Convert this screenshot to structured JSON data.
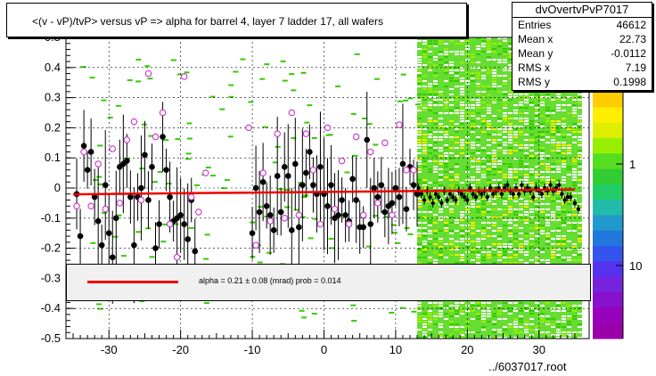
{
  "title": "<(v - vP)/tvP> versus  vP => alpha for barrel 4, layer 7 ladder 17, all wafers",
  "stats": {
    "name": "dvOvertvPvP7017",
    "rows": [
      {
        "label": "Entries",
        "value": "46612"
      },
      {
        "label": "Mean x",
        "value": "22.73"
      },
      {
        "label": "Mean y",
        "value": "-0.0112"
      },
      {
        "label": "RMS x",
        "value": "7.19"
      },
      {
        "label": "RMS y",
        "value": "0.1998"
      }
    ]
  },
  "fit_text": "alpha =     0.21 ±   0.08 (mrad) prob = 0.014",
  "footer": "../6037017.root",
  "colors": {
    "fit_line": "#ee0000",
    "profile_marker": "#000000",
    "open_marker": "#cc33cc",
    "fit_box_bg": "#f0f0f0"
  },
  "chart_data": {
    "type": "scatter",
    "xlim": [
      -36,
      37
    ],
    "ylim": [
      -0.5,
      0.5
    ],
    "x_ticks": [
      "-30",
      "-20",
      "-10",
      "0",
      "10",
      "20",
      "30"
    ],
    "y_ticks": [
      "-0.5",
      "-0.4",
      "-0.3",
      "-0.2",
      "-0.1",
      "0",
      "0.1",
      "0.2",
      "0.3",
      "0.4",
      "0.5"
    ],
    "z_ticks": [
      "1",
      "10"
    ],
    "grid": true,
    "dense_band": {
      "x": [
        13,
        36
      ],
      "y": [
        -0.5,
        0.5
      ]
    },
    "fit_line": {
      "x": [
        -35,
        35
      ],
      "y": [
        -0.021,
        -0.005
      ]
    },
    "series": [
      {
        "marker": "filled-circle",
        "points": [
          [
            -34.5,
            -0.02
          ],
          [
            -34,
            -0.16
          ],
          [
            -33.5,
            0.14
          ],
          [
            -33,
            0.06
          ],
          [
            -32.5,
            0.12
          ],
          [
            -32,
            -0.03
          ],
          [
            -31.5,
            -0.11
          ],
          [
            -31,
            -0.19
          ],
          [
            -30.5,
            0.01
          ],
          [
            -30,
            -0.15
          ],
          [
            -29.5,
            -0.23
          ],
          [
            -29,
            -0.1
          ],
          [
            -28.5,
            0.07
          ],
          [
            -28,
            0.08
          ],
          [
            -27.5,
            0.09
          ],
          [
            -27,
            -0.03
          ],
          [
            -26.5,
            -0.19
          ],
          [
            -26,
            -0.03
          ],
          [
            -25.5,
            0.0
          ],
          [
            -25,
            0.11
          ],
          [
            -24.5,
            -0.04
          ],
          [
            -24,
            0.07
          ],
          [
            -23.5,
            -0.2
          ],
          [
            -23,
            -0.12
          ],
          [
            -22.5,
            0.17
          ],
          [
            -22,
            0.06
          ],
          [
            -21.5,
            -0.03
          ],
          [
            -21,
            -0.11
          ],
          [
            -20.5,
            -0.1
          ],
          [
            -20,
            -0.09
          ],
          [
            -19.5,
            -0.12
          ],
          [
            -19,
            -0.17
          ],
          [
            -18.5,
            -0.04
          ],
          [
            -18,
            -0.21
          ],
          [
            -10,
            -0.15
          ],
          [
            -9.5,
            0.0
          ],
          [
            -9,
            -0.08
          ],
          [
            -8.5,
            0.02
          ],
          [
            -8,
            -0.06
          ],
          [
            -7.5,
            -0.09
          ],
          [
            -7,
            -0.14
          ],
          [
            -6.5,
            0.04
          ],
          [
            -6,
            -0.08
          ],
          [
            -5.5,
            0.07
          ],
          [
            -5,
            0.04
          ],
          [
            -4.5,
            -0.14
          ],
          [
            -4,
            0.08
          ],
          [
            -3.5,
            -0.13
          ],
          [
            -3,
            0.01
          ],
          [
            -2.5,
            0.05
          ],
          [
            -2,
            0.12
          ],
          [
            -1.5,
            0.01
          ],
          [
            -1,
            -0.02
          ],
          [
            -0.5,
            0.07
          ],
          [
            0,
            -0.02
          ],
          [
            0.5,
            -0.06
          ],
          [
            1,
            0.01
          ],
          [
            1.5,
            -0.1
          ],
          [
            2,
            -0.09
          ],
          [
            2.5,
            -0.04
          ],
          [
            3,
            -0.09
          ],
          [
            3.5,
            -0.11
          ],
          [
            4,
            0.03
          ],
          [
            4.5,
            -0.04
          ],
          [
            5,
            -0.13
          ],
          [
            5.5,
            -0.13
          ],
          [
            6,
            0.16
          ],
          [
            6.5,
            -0.12
          ],
          [
            7,
            0.0
          ],
          [
            7.5,
            -0.03
          ],
          [
            8,
            0.01
          ],
          [
            8.5,
            -0.08
          ],
          [
            9,
            -0.06
          ],
          [
            9.5,
            -0.05
          ],
          [
            10,
            0.0
          ],
          [
            10.5,
            -0.03
          ],
          [
            11,
            0.08
          ],
          [
            11.5,
            -0.07
          ],
          [
            12,
            0.07
          ],
          [
            12.5,
            0.01
          ],
          [
            13,
            -0.02
          ]
        ]
      },
      {
        "marker": "open-circle",
        "points": [
          [
            -34.5,
            -0.06
          ],
          [
            -33.5,
            0.12
          ],
          [
            -32.5,
            -0.06
          ],
          [
            -31.5,
            0.08
          ],
          [
            -30.5,
            -0.07
          ],
          [
            -29.5,
            0.13
          ],
          [
            -28.5,
            -0.05
          ],
          [
            -27.5,
            0.16
          ],
          [
            -26.5,
            0.22
          ],
          [
            -25.5,
            -0.04
          ],
          [
            -24.5,
            0.38
          ],
          [
            -23.5,
            0.17
          ],
          [
            -22.5,
            0.25
          ],
          [
            -21.5,
            -0.12
          ],
          [
            -20.5,
            -0.23
          ],
          [
            -19.5,
            0.37
          ],
          [
            -18.5,
            -0.03
          ],
          [
            -17.5,
            -0.08
          ],
          [
            -16.5,
            0.05
          ],
          [
            -10.5,
            0.2
          ],
          [
            -9.5,
            -0.19
          ],
          [
            -8.5,
            0.05
          ],
          [
            -7.5,
            -0.11
          ],
          [
            -6.5,
            0.18
          ],
          [
            -5.5,
            -0.1
          ],
          [
            -4.5,
            0.25
          ],
          [
            -3.5,
            -0.09
          ],
          [
            -2.5,
            0.18
          ],
          [
            -1.5,
            0.06
          ],
          [
            -0.5,
            -0.12
          ],
          [
            0.5,
            0.2
          ],
          [
            1.5,
            -0.07
          ],
          [
            2.5,
            0.09
          ],
          [
            3.5,
            -0.12
          ],
          [
            4.5,
            0.17
          ],
          [
            5.5,
            -0.09
          ],
          [
            6.5,
            0.12
          ],
          [
            7.5,
            -0.05
          ],
          [
            8.5,
            0.15
          ],
          [
            9.5,
            -0.09
          ],
          [
            10.5,
            0.21
          ],
          [
            11.5,
            0.06
          ],
          [
            12.5,
            0.06
          ]
        ]
      },
      {
        "marker": "profile-band",
        "points": [
          [
            13.2,
            0.0
          ],
          [
            13.6,
            -0.02
          ],
          [
            14,
            -0.04
          ],
          [
            14.4,
            -0.01
          ],
          [
            14.8,
            -0.03
          ],
          [
            15.2,
            -0.05
          ],
          [
            15.6,
            -0.02
          ],
          [
            16,
            -0.03
          ],
          [
            16.4,
            -0.05
          ],
          [
            16.8,
            -0.01
          ],
          [
            17.2,
            -0.04
          ],
          [
            17.6,
            -0.02
          ],
          [
            18,
            -0.03
          ],
          [
            18.4,
            -0.04
          ],
          [
            18.8,
            -0.01
          ],
          [
            19.2,
            -0.02
          ],
          [
            19.6,
            -0.03
          ],
          [
            20,
            -0.04
          ],
          [
            20.4,
            0.0
          ],
          [
            20.8,
            -0.02
          ],
          [
            21.2,
            -0.03
          ],
          [
            21.6,
            -0.01
          ],
          [
            22,
            -0.02
          ],
          [
            22.4,
            -0.01
          ],
          [
            22.8,
            -0.03
          ],
          [
            23.2,
            0.0
          ],
          [
            23.6,
            -0.02
          ],
          [
            24,
            -0.01
          ],
          [
            24.4,
            0.0
          ],
          [
            24.8,
            -0.02
          ],
          [
            25.2,
            0.0
          ],
          [
            25.6,
            0.01
          ],
          [
            26,
            -0.01
          ],
          [
            26.4,
            -0.02
          ],
          [
            26.8,
            0.0
          ],
          [
            27.2,
            -0.02
          ],
          [
            27.6,
            0.01
          ],
          [
            28,
            -0.01
          ],
          [
            28.4,
            0.0
          ],
          [
            28.8,
            -0.01
          ],
          [
            29.2,
            -0.03
          ],
          [
            29.6,
            0.0
          ],
          [
            30,
            -0.01
          ],
          [
            30.4,
            -0.02
          ],
          [
            30.8,
            0.0
          ],
          [
            31.2,
            -0.01
          ],
          [
            31.6,
            0.01
          ],
          [
            32,
            -0.01
          ],
          [
            32.4,
            0.0
          ],
          [
            32.8,
            0.01
          ],
          [
            33.2,
            -0.02
          ],
          [
            33.6,
            -0.04
          ],
          [
            34,
            -0.03
          ],
          [
            34.4,
            -0.03
          ],
          [
            35,
            -0.05
          ],
          [
            35.5,
            -0.07
          ]
        ]
      }
    ]
  }
}
